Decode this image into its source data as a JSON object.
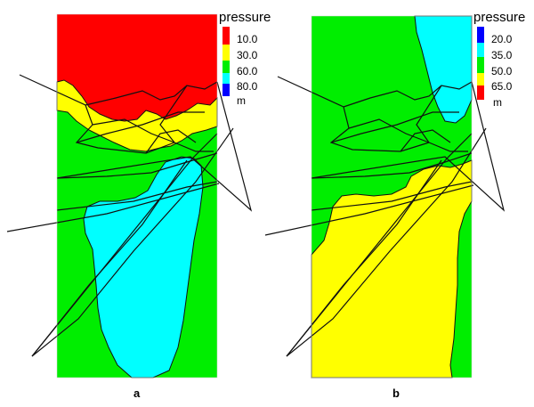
{
  "panels": [
    {
      "id": "a",
      "label": "a",
      "legend": {
        "title": "pressure",
        "unit": "m",
        "values": [
          "10.0",
          "30.0",
          "60.0",
          "80.0"
        ],
        "colors": [
          "#ff0000",
          "#ffff00",
          "#00ee00",
          "#00ffff",
          "#0000ff"
        ]
      }
    },
    {
      "id": "b",
      "label": "b",
      "legend": {
        "title": "pressure",
        "unit": "m",
        "values": [
          "20.0",
          "35.0",
          "50.0",
          "65.0"
        ],
        "colors": [
          "#0000ff",
          "#00ffff",
          "#00ee00",
          "#ffff00",
          "#ff0000"
        ]
      }
    }
  ],
  "colors": {
    "red": "#ff0000",
    "yellow": "#ffff00",
    "green": "#00ee00",
    "cyan": "#00ffff",
    "line": "#111111"
  }
}
